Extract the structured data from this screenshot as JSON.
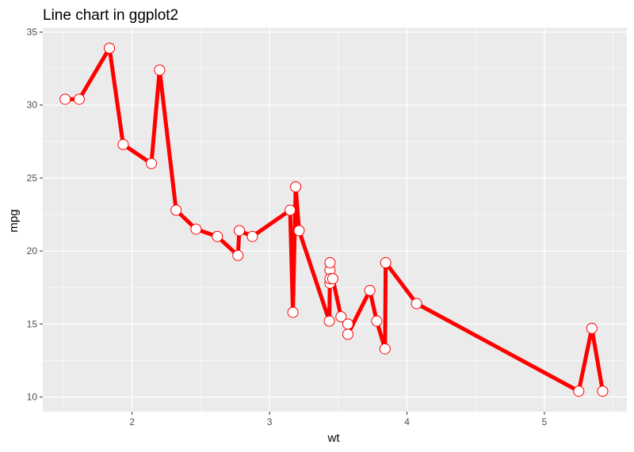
{
  "chart_data": {
    "type": "line",
    "title": "Line chart in ggplot2",
    "xlabel": "wt",
    "ylabel": "mpg",
    "xlim": [
      1.35,
      5.6
    ],
    "ylim": [
      9.0,
      35.3
    ],
    "x_ticks": [
      2,
      3,
      4,
      5
    ],
    "x_tick_labels": [
      "2",
      "3",
      "4",
      "5"
    ],
    "y_ticks": [
      10,
      15,
      20,
      25,
      30,
      35
    ],
    "y_tick_labels": [
      "10",
      "15",
      "20",
      "25",
      "30",
      "35"
    ],
    "x_minor_ticks": [
      1.5,
      2.5,
      3.5,
      4.5,
      5.5
    ],
    "y_minor_ticks": [
      12.5,
      17.5,
      22.5,
      27.5,
      32.5
    ],
    "grid": true,
    "legend": "none",
    "colors": {
      "line": "#ff0000",
      "point_fill": "#ffffff",
      "point_stroke": "#ff0000",
      "panel": "#ebebeb",
      "grid": "#ffffff"
    },
    "series": [
      {
        "x": [
          1.513,
          1.615,
          1.835,
          1.935,
          2.14,
          2.2,
          2.32,
          2.465,
          2.62,
          2.77,
          2.78,
          2.875,
          3.15,
          3.17,
          3.19,
          3.215,
          3.435,
          3.44,
          3.44,
          3.44,
          3.44,
          3.46,
          3.52,
          3.57,
          3.57,
          3.73,
          3.78,
          3.84,
          3.845,
          4.07,
          5.25,
          5.345,
          5.424
        ],
        "y": [
          30.4,
          30.4,
          33.9,
          27.3,
          26.0,
          32.4,
          22.8,
          21.5,
          21.0,
          19.7,
          21.4,
          21.0,
          22.8,
          15.8,
          24.4,
          21.4,
          15.2,
          18.7,
          19.2,
          17.8,
          18.1,
          18.1,
          15.5,
          15.0,
          14.3,
          17.3,
          15.2,
          13.3,
          19.2,
          16.4,
          10.4,
          14.7,
          10.4
        ]
      }
    ]
  }
}
